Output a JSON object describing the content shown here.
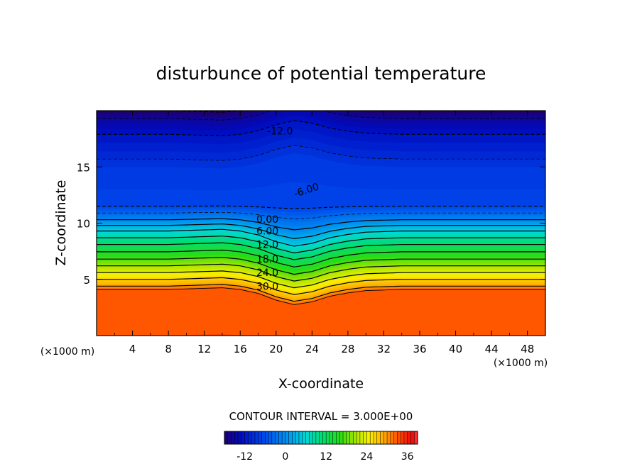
{
  "chart_data": {
    "type": "heatmap",
    "title": "disturbunce of potential temperature",
    "xlabel": "X-coordinate",
    "ylabel": "Z-coordinate",
    "x_unit_left": "(×1000 m)",
    "x_unit_right": "(×1000 m)",
    "xlim": [
      0,
      50
    ],
    "ylim": [
      0,
      20
    ],
    "xticks": [
      4,
      8,
      12,
      16,
      20,
      24,
      28,
      32,
      36,
      40,
      44,
      48
    ],
    "xtick_labels": [
      "4",
      "8",
      "12",
      "16",
      "20",
      "24",
      "28",
      "32",
      "36",
      "40",
      "44",
      "48"
    ],
    "yticks": [
      5,
      10,
      15
    ],
    "ytick_labels": [
      "5",
      "10",
      "15"
    ],
    "contour_interval_text": "CONTOUR INTERVAL = 3.000E+00",
    "contour_interval": 3,
    "color_range": [
      -18,
      39
    ],
    "colorbar_ticks": [
      -12,
      0,
      12,
      24,
      36
    ],
    "colorbar_tick_labels": [
      "-12",
      "0",
      "12",
      "24",
      "36"
    ],
    "contour_labels": [
      {
        "text": "-12.0",
        "value": -12,
        "x": 19.0,
        "z": 18.2
      },
      {
        "text": "-6.00",
        "value": -6,
        "x": 22.0,
        "z": 12.6
      },
      {
        "text": "0.00",
        "value": 0,
        "x": 17.8,
        "z": 10.35
      },
      {
        "text": "6.00",
        "value": 6,
        "x": 17.8,
        "z": 9.3
      },
      {
        "text": "12.0",
        "value": 12,
        "x": 17.8,
        "z": 8.1
      },
      {
        "text": "18.0",
        "value": 18,
        "x": 17.8,
        "z": 6.8
      },
      {
        "text": "24.0",
        "value": 24,
        "x": 17.8,
        "z": 5.6
      },
      {
        "text": "30.0",
        "value": 30,
        "x": 17.8,
        "z": 4.4
      }
    ],
    "profile_x": [
      0,
      4,
      8,
      12,
      14,
      16,
      18,
      20,
      22,
      24,
      26,
      28,
      30,
      34,
      40,
      44,
      48,
      50
    ],
    "profile_delta": [
      0,
      0,
      0,
      0.1,
      0.15,
      0,
      -0.35,
      -0.95,
      -1.35,
      -1.1,
      -0.6,
      -0.3,
      -0.1,
      0,
      0,
      0,
      0,
      0
    ],
    "stratification": [
      {
        "value": -18,
        "z": 20
      },
      {
        "value": -15,
        "z": 19.3
      },
      {
        "value": -12,
        "z": 17.9
      },
      {
        "value": -10,
        "z": 16.4
      },
      {
        "value": -8,
        "z": 15.0
      },
      {
        "value": -7,
        "z": 13.0
      },
      {
        "value": -6,
        "z": 11.5
      },
      {
        "value": -3,
        "z": 10.9
      },
      {
        "value": 0,
        "z": 10.3
      },
      {
        "value": 6,
        "z": 9.3
      },
      {
        "value": 12,
        "z": 8.1
      },
      {
        "value": 18,
        "z": 6.8
      },
      {
        "value": 24,
        "z": 5.6
      },
      {
        "value": 30,
        "z": 4.4
      },
      {
        "value": 33,
        "z": 4.1
      },
      {
        "value": 34,
        "z": 0
      }
    ]
  }
}
